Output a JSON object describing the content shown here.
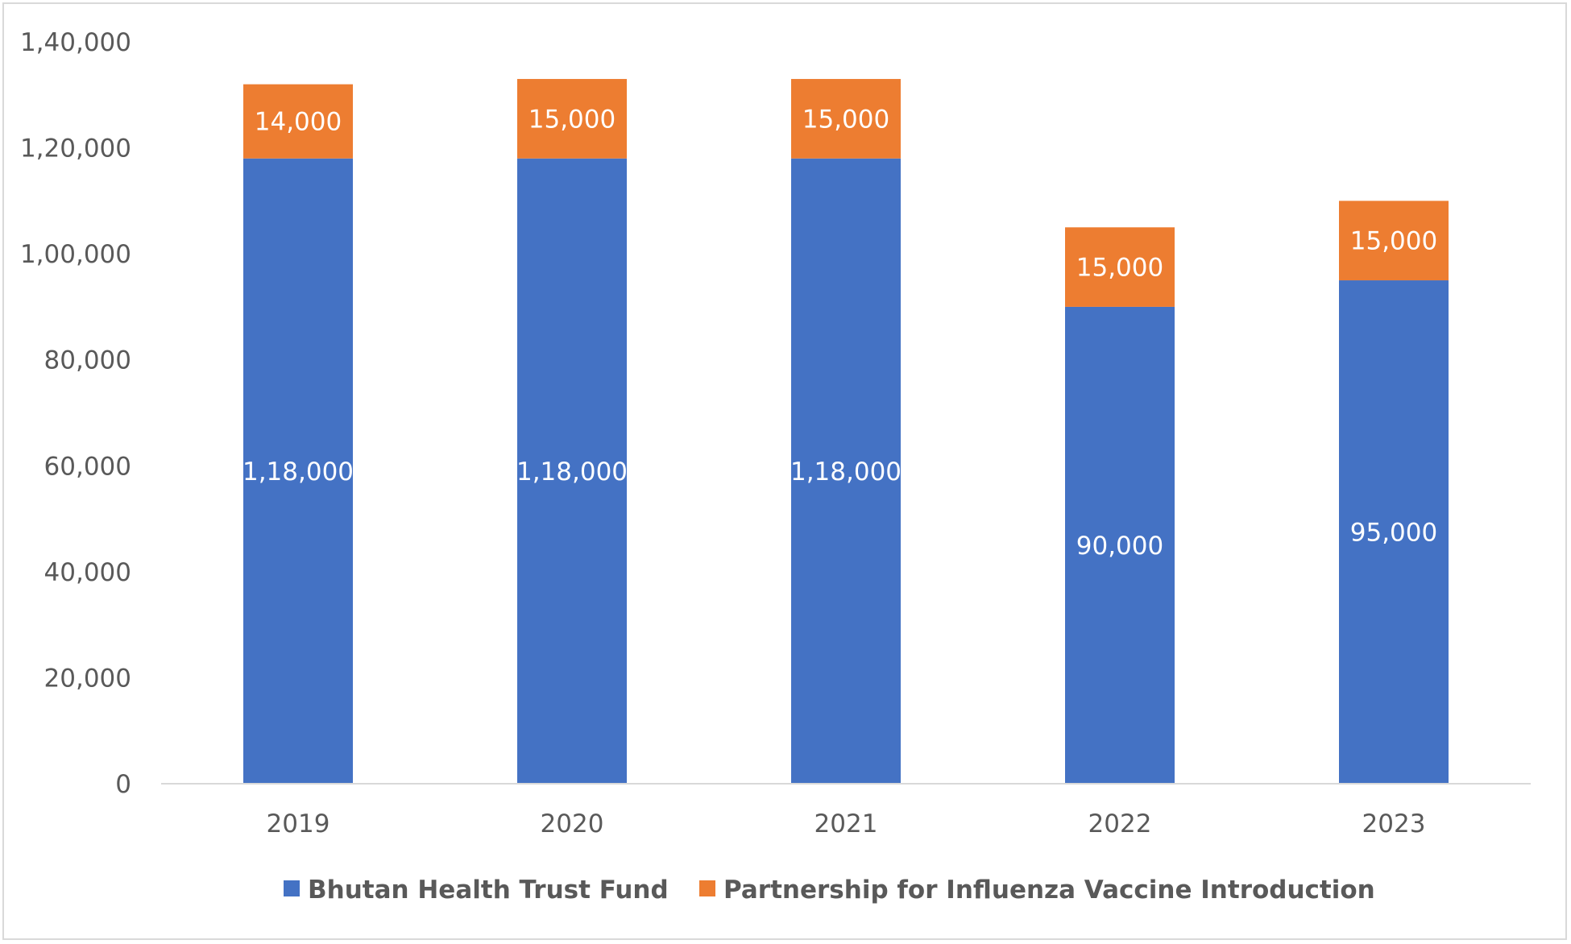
{
  "chart_data": {
    "type": "bar",
    "stacked": true,
    "categories": [
      "2019",
      "2020",
      "2021",
      "2022",
      "2023"
    ],
    "series": [
      {
        "name": "Bhutan Health Trust Fund",
        "color": "#4472c4",
        "values": [
          118000,
          118000,
          118000,
          90000,
          95000
        ],
        "labels": [
          "1,18,000",
          "1,18,000",
          "1,18,000",
          "90,000",
          "95,000"
        ]
      },
      {
        "name": "Partnership for Influenza Vaccine Introduction",
        "color": "#ed7d31",
        "values": [
          14000,
          15000,
          15000,
          15000,
          15000
        ],
        "labels": [
          "14,000",
          "15,000",
          "15,000",
          "15,000",
          "15,000"
        ]
      }
    ],
    "ylim": [
      0,
      140000
    ],
    "yticks": [
      0,
      20000,
      40000,
      60000,
      80000,
      100000,
      120000,
      140000
    ],
    "ytick_labels": [
      "0",
      "20,000",
      "40,000",
      "60,000",
      "80,000",
      "1,00,000",
      "1,20,000",
      "1,40,000"
    ],
    "title": "",
    "xlabel": "",
    "ylabel": "",
    "grid": false,
    "legend": "bottom"
  }
}
